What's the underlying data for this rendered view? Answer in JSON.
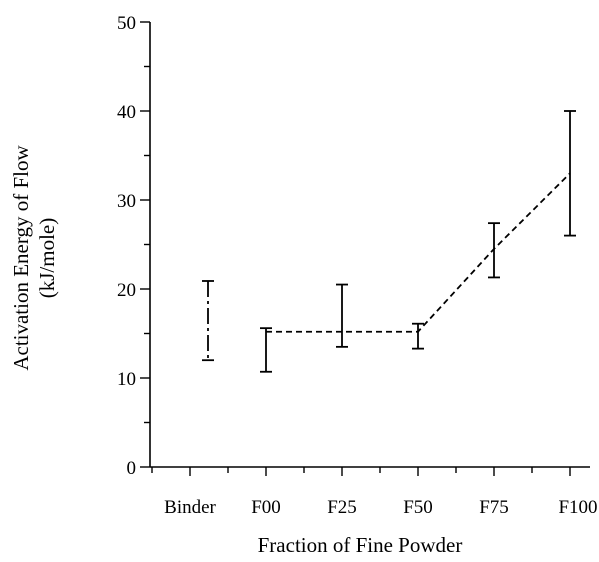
{
  "chart_data": {
    "type": "line",
    "title": "",
    "xlabel": "Fraction of Fine Powder",
    "ylabel": "Activation Energy of Flow",
    "ylabel_unit": "(kJ/mole)",
    "categories": [
      "Binder",
      "F00",
      "F25",
      "F50",
      "F75",
      "F100"
    ],
    "ylim": [
      0,
      50
    ],
    "yticks": [
      0,
      10,
      20,
      30,
      40,
      50
    ],
    "grid": false,
    "series": [
      {
        "values": [
          null,
          15.2,
          15.2,
          15.2,
          24.5,
          33
        ],
        "error_low": [
          null,
          10.7,
          13.5,
          13.3,
          21.3,
          26
        ],
        "error_high": [
          null,
          15.6,
          20.5,
          16.1,
          27.4,
          40
        ]
      }
    ],
    "binder_range": {
      "category": "Binder",
      "low": 12,
      "high": 20.9
    }
  }
}
